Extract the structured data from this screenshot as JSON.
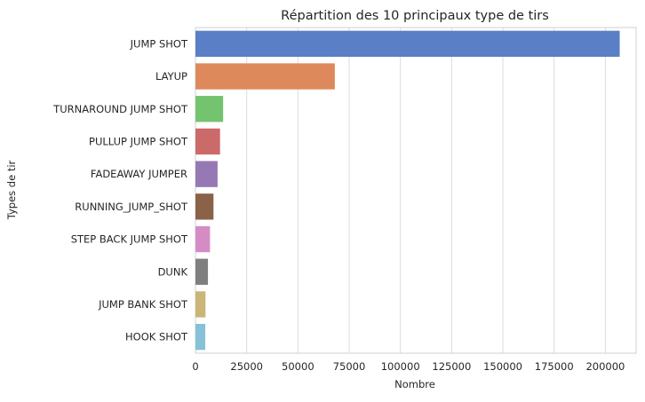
{
  "chart_data": {
    "type": "bar",
    "orientation": "horizontal",
    "title": "Répartition des 10 principaux type de tirs",
    "xlabel": "Nombre",
    "ylabel": "Types de tir",
    "categories": [
      "JUMP SHOT",
      "LAYUP",
      "TURNAROUND JUMP SHOT",
      "PULLUP JUMP SHOT",
      "FADEAWAY JUMPER",
      "RUNNING_JUMP_SHOT",
      "STEP BACK JUMP SHOT",
      "DUNK",
      "JUMP BANK SHOT",
      "HOOK SHOT"
    ],
    "values": [
      207000,
      68000,
      13500,
      12000,
      10800,
      8800,
      7100,
      6100,
      4900,
      4800
    ],
    "colors": [
      "#5a7fc7",
      "#dd895c",
      "#74c46f",
      "#cc6a6a",
      "#9679b4",
      "#8a6247",
      "#d58cc4",
      "#7f7f7f",
      "#cbb677",
      "#86c1d8"
    ],
    "xlim": [
      0,
      215000
    ],
    "xticks": [
      0,
      25000,
      50000,
      75000,
      100000,
      125000,
      150000,
      175000,
      200000
    ],
    "grid": "vertical",
    "legend": "none"
  }
}
